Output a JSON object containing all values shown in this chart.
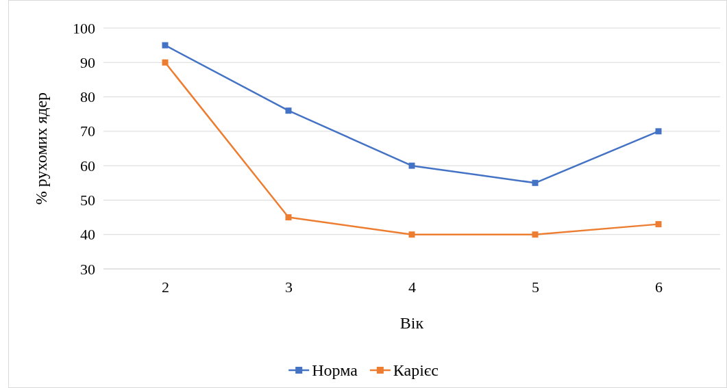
{
  "chart_data": {
    "type": "line",
    "xlabel": "Вік",
    "ylabel": "% рухомих ядер",
    "categories": [
      "2",
      "3",
      "4",
      "5",
      "6"
    ],
    "series": [
      {
        "name": "Норма",
        "color": "#4472c4",
        "values": [
          95,
          76,
          60,
          55,
          70
        ]
      },
      {
        "name": "Карієс",
        "color": "#ed7d31",
        "values": [
          90,
          45,
          40,
          40,
          43
        ]
      }
    ],
    "ylim": [
      30,
      100
    ],
    "yticks": [
      30,
      40,
      50,
      60,
      70,
      80,
      90,
      100
    ],
    "grid": "y",
    "legend": "bottom",
    "marker": "square",
    "line_style": "solid"
  }
}
